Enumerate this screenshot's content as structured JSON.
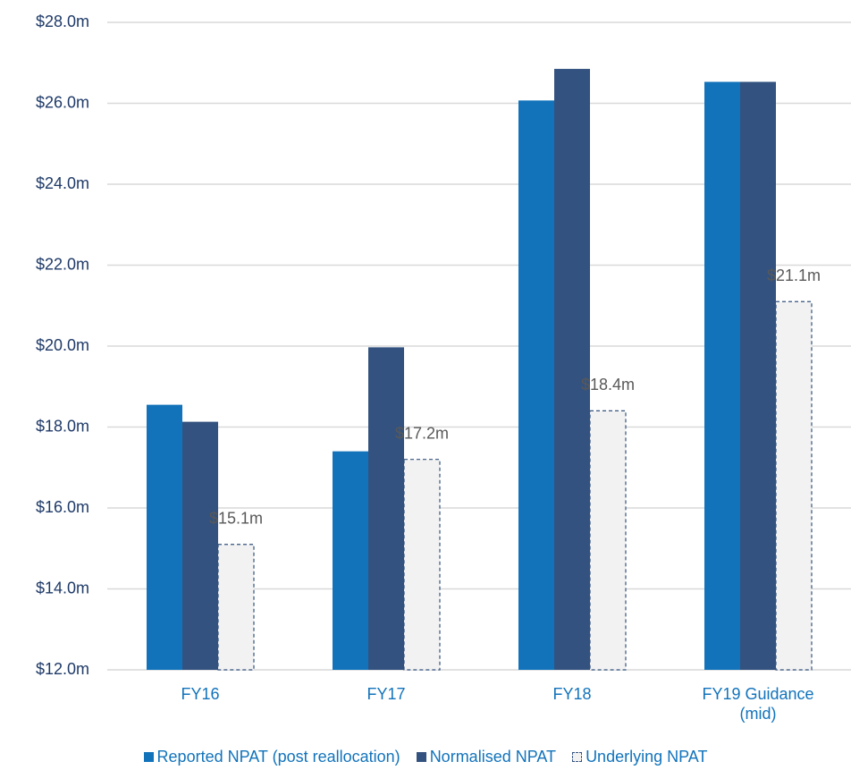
{
  "chart_data": {
    "type": "bar",
    "categories": [
      "FY16",
      "FY17",
      "FY18",
      "FY19 Guidance (mid)"
    ],
    "series": [
      {
        "name": "Reported NPAT (post reallocation)",
        "color": "#1273bb",
        "values": [
          18.55,
          17.4,
          26.07,
          26.53
        ]
      },
      {
        "name": "Normalised NPAT",
        "color": "#33527f",
        "values": [
          18.13,
          19.97,
          26.85,
          26.53
        ]
      },
      {
        "name": "Underlying NPAT",
        "color": "#f2f2f2",
        "values": [
          15.1,
          17.2,
          18.4,
          21.1
        ],
        "value_labels": [
          "$15.1m",
          "$17.2m",
          "$18.4m",
          "$21.1m"
        ]
      }
    ],
    "ylim": [
      12,
      28
    ],
    "yticks": [
      {
        "value": 12,
        "label": "$12.0m"
      },
      {
        "value": 14,
        "label": "$14.0m"
      },
      {
        "value": 16,
        "label": "$16.0m"
      },
      {
        "value": 18,
        "label": "$18.0m"
      },
      {
        "value": 20,
        "label": "$20.0m"
      },
      {
        "value": 22,
        "label": "$22.0m"
      },
      {
        "value": 24,
        "label": "$24.0m"
      },
      {
        "value": 26,
        "label": "$26.0m"
      },
      {
        "value": 28,
        "label": "$28.0m"
      }
    ],
    "grid": true,
    "legend": "bottom"
  }
}
